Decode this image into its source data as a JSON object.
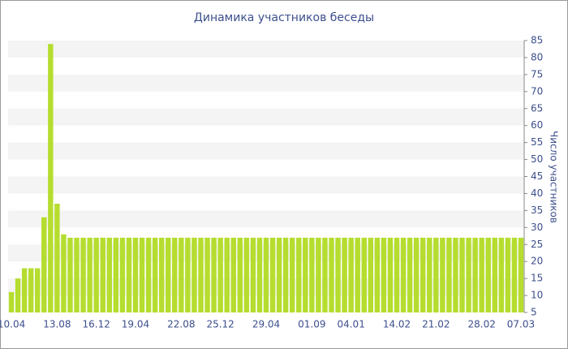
{
  "chart_data": {
    "type": "bar",
    "title": "Динамика участников беседы",
    "y_label": "Число участников",
    "categories": [
      "10.04",
      null,
      null,
      null,
      null,
      null,
      null,
      "13.08",
      null,
      null,
      null,
      null,
      null,
      "16.12",
      null,
      null,
      null,
      null,
      null,
      "19.04",
      null,
      null,
      null,
      null,
      null,
      null,
      "22.08",
      null,
      null,
      null,
      null,
      null,
      "25.12",
      null,
      null,
      null,
      null,
      null,
      null,
      "29.04",
      null,
      null,
      null,
      null,
      null,
      null,
      "01.09",
      null,
      null,
      null,
      null,
      null,
      "04.01",
      null,
      null,
      null,
      null,
      null,
      null,
      "14.02",
      null,
      null,
      null,
      null,
      null,
      "21.02",
      null,
      null,
      null,
      null,
      null,
      null,
      "28.02",
      null,
      null,
      null,
      null,
      null,
      "07.03"
    ],
    "values": [
      11,
      15,
      18,
      18,
      18,
      33,
      84,
      37,
      28,
      27,
      27,
      27,
      27,
      27,
      27,
      27,
      27,
      27,
      27,
      27,
      27,
      27,
      27,
      27,
      27,
      27,
      27,
      27,
      27,
      27,
      27,
      27,
      27,
      27,
      27,
      27,
      27,
      27,
      27,
      27,
      27,
      27,
      27,
      27,
      27,
      27,
      27,
      27,
      27,
      27,
      27,
      27,
      27,
      27,
      27,
      27,
      27,
      27,
      27,
      27,
      27,
      27,
      27,
      27,
      27,
      27,
      27,
      27,
      27,
      27,
      27,
      27,
      27,
      27,
      27,
      27,
      27,
      27,
      27
    ],
    "color": "#b5dd2f",
    "ylim": [
      5,
      85
    ],
    "yticks": [
      5,
      10,
      15,
      20,
      25,
      30,
      35,
      40,
      45,
      50,
      55,
      60,
      65,
      70,
      75,
      80,
      85
    ],
    "grid": true
  }
}
